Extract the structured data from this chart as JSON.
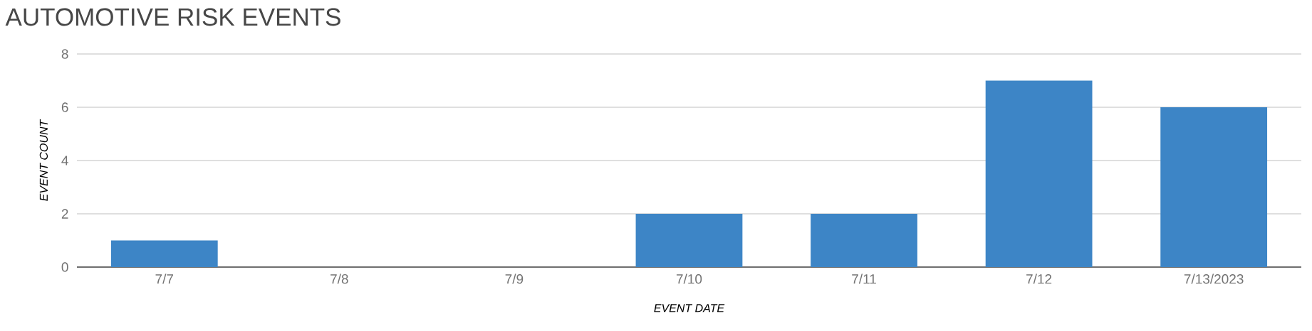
{
  "chart_data": {
    "type": "bar",
    "title": "AUTOMOTIVE RISK EVENTS",
    "xlabel": "EVENT DATE",
    "ylabel": "EVENT COUNT",
    "categories": [
      "7/7",
      "7/8",
      "7/9",
      "7/10",
      "7/11",
      "7/12",
      "7/13/2023"
    ],
    "values": [
      1,
      0,
      0,
      2,
      2,
      7,
      6
    ],
    "color": "#3d85c6",
    "ylim": [
      0,
      8
    ],
    "yticks": [
      0,
      2,
      4,
      6,
      8
    ],
    "grid": "y"
  }
}
